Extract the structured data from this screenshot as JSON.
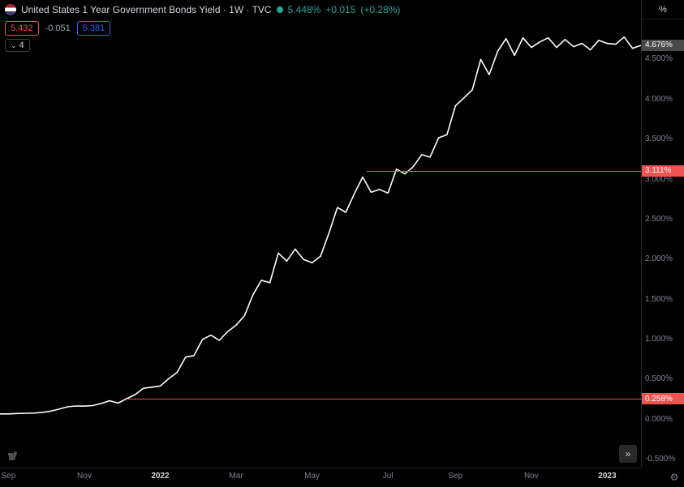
{
  "header": {
    "title": "United States 1 Year Government Bonds Yield · 1W · TVC",
    "status_color": "#26a69a",
    "last": "5.448%",
    "last_color": "#26a69a",
    "change": "+0.015",
    "change_pct": "(+0.28%)",
    "change_color": "#26a69a"
  },
  "quotebar": {
    "pill_a": {
      "text": "5.432",
      "color": "#ef5350"
    },
    "mid": {
      "text": "-0.051"
    },
    "pill_b": {
      "text": "5.381",
      "color": "#2962ff"
    }
  },
  "interval_badge": "4",
  "yaxis": {
    "unit_label": "%",
    "min": -0.6,
    "max": 5.0,
    "ticks": [
      {
        "v": 4.5,
        "label": "4.500%"
      },
      {
        "v": 4.0,
        "label": "4.000%"
      },
      {
        "v": 3.5,
        "label": "3.500%"
      },
      {
        "v": 3.0,
        "label": "3.000%"
      },
      {
        "v": 2.5,
        "label": "2.500%"
      },
      {
        "v": 2.0,
        "label": "2.000%"
      },
      {
        "v": 1.5,
        "label": "1.500%"
      },
      {
        "v": 1.0,
        "label": "1.000%"
      },
      {
        "v": 0.5,
        "label": "0.500%"
      },
      {
        "v": 0.0,
        "label": "0.000%"
      },
      {
        "v": -0.5,
        "label": "-0.500%"
      }
    ],
    "markers": [
      {
        "v": 4.676,
        "label": "4.676%",
        "bg": "#4a4a4a"
      },
      {
        "v": 3.111,
        "label": "3.111%",
        "bg": "#ef5350"
      },
      {
        "v": 0.258,
        "label": "0.258%",
        "bg": "#ef5350"
      }
    ]
  },
  "xaxis": {
    "min": 0,
    "max": 76,
    "ticks": [
      {
        "t": 1,
        "label": "Sep",
        "bold": false
      },
      {
        "t": 10,
        "label": "Nov",
        "bold": false
      },
      {
        "t": 19,
        "label": "2022",
        "bold": true
      },
      {
        "t": 28,
        "label": "Mar",
        "bold": false
      },
      {
        "t": 37,
        "label": "May",
        "bold": false
      },
      {
        "t": 46,
        "label": "Jul",
        "bold": false
      },
      {
        "t": 54,
        "label": "Sep",
        "bold": false
      },
      {
        "t": 63,
        "label": "Nov",
        "bold": false
      },
      {
        "t": 72,
        "label": "2023",
        "bold": true
      }
    ]
  },
  "crosshair_lines": [
    {
      "y": 3.111,
      "x_from": 43.5,
      "color": "#ef5350",
      "width": 1
    },
    {
      "y": 0.258,
      "x_from": 15,
      "color": "#ef5350",
      "width": 1
    }
  ],
  "series": {
    "color": "#ffffff",
    "width": 1.6,
    "points": [
      [
        0,
        0.07
      ],
      [
        1,
        0.07
      ],
      [
        2,
        0.075
      ],
      [
        3,
        0.078
      ],
      [
        4,
        0.08
      ],
      [
        5,
        0.09
      ],
      [
        6,
        0.105
      ],
      [
        7,
        0.13
      ],
      [
        8,
        0.16
      ],
      [
        9,
        0.17
      ],
      [
        10,
        0.168
      ],
      [
        11,
        0.175
      ],
      [
        12,
        0.2
      ],
      [
        13,
        0.235
      ],
      [
        14,
        0.205
      ],
      [
        15,
        0.26
      ],
      [
        16,
        0.31
      ],
      [
        17,
        0.39
      ],
      [
        18,
        0.405
      ],
      [
        19,
        0.42
      ],
      [
        20,
        0.51
      ],
      [
        21,
        0.59
      ],
      [
        22,
        0.78
      ],
      [
        23,
        0.8
      ],
      [
        24,
        1.0
      ],
      [
        25,
        1.055
      ],
      [
        26,
        0.99
      ],
      [
        27,
        1.1
      ],
      [
        28,
        1.18
      ],
      [
        29,
        1.3
      ],
      [
        30,
        1.56
      ],
      [
        31,
        1.74
      ],
      [
        32,
        1.71
      ],
      [
        33,
        2.08
      ],
      [
        34,
        1.98
      ],
      [
        35,
        2.13
      ],
      [
        36,
        2.0
      ],
      [
        37,
        1.96
      ],
      [
        38,
        2.04
      ],
      [
        39,
        2.33
      ],
      [
        40,
        2.65
      ],
      [
        41,
        2.59
      ],
      [
        42,
        2.82
      ],
      [
        43,
        3.03
      ],
      [
        44,
        2.84
      ],
      [
        45,
        2.875
      ],
      [
        46,
        2.83
      ],
      [
        47,
        3.13
      ],
      [
        48,
        3.07
      ],
      [
        49,
        3.16
      ],
      [
        50,
        3.31
      ],
      [
        51,
        3.28
      ],
      [
        52,
        3.52
      ],
      [
        53,
        3.56
      ],
      [
        54,
        3.92
      ],
      [
        55,
        4.02
      ],
      [
        56,
        4.12
      ],
      [
        57,
        4.5
      ],
      [
        58,
        4.31
      ],
      [
        59,
        4.6
      ],
      [
        60,
        4.76
      ],
      [
        61,
        4.55
      ],
      [
        62,
        4.77
      ],
      [
        63,
        4.65
      ],
      [
        64,
        4.72
      ],
      [
        65,
        4.77
      ],
      [
        66,
        4.65
      ],
      [
        67,
        4.75
      ],
      [
        68,
        4.66
      ],
      [
        69,
        4.7
      ],
      [
        70,
        4.62
      ],
      [
        71,
        4.74
      ],
      [
        72,
        4.7
      ],
      [
        73,
        4.69
      ],
      [
        74,
        4.78
      ],
      [
        75,
        4.64
      ],
      [
        76,
        4.676
      ]
    ]
  },
  "colors": {
    "bg": "#000000",
    "axis_text": "#808593",
    "title_text": "#d1d4dc",
    "grid": "#2a2a2a"
  },
  "buttons": {
    "goto_glyph": "»",
    "gear_glyph": "⚙"
  },
  "logo": "1"
}
